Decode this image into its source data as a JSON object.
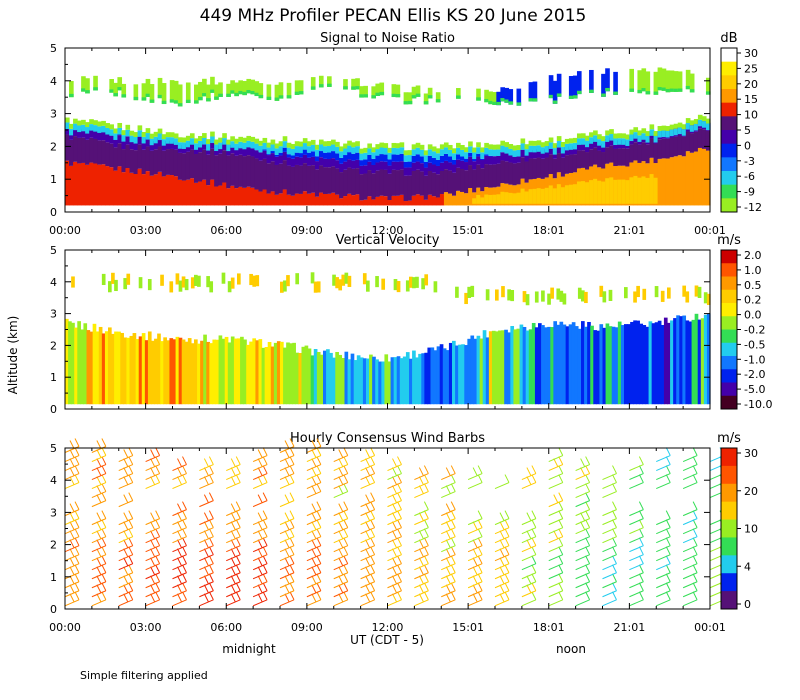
{
  "figure_title": "449 MHz Profiler PECAN Ellis KS 20 June 2015",
  "y_axis_label": "Altitude (km)",
  "x_axis_label": "UT (CDT - 5)",
  "day_labels": [
    "midnight",
    "noon"
  ],
  "footnote": "Simple filtering applied",
  "colors": {
    "white": "#ffffff",
    "lime": "#99ee22",
    "green": "#33dd55",
    "cyan": "#22ccee",
    "blue_light": "#1177ff",
    "blue": "#0022ee",
    "indigo": "#4400aa",
    "purple": "#551177",
    "red": "#ee2200",
    "orange_red": "#ff5500",
    "orange": "#ff9900",
    "yellow_orange": "#ffcc00",
    "yellow": "#ffee00",
    "dark_red": "#cc0000",
    "maroon": "#440022"
  },
  "chart_data": [
    {
      "type": "heatmap",
      "title": "Signal to Noise Ratio",
      "colorbar_unit": "dB",
      "colorbar_ticks": [
        "30",
        "25",
        "20",
        "15",
        "10",
        "5",
        "0",
        "-3",
        "-6",
        "-9",
        "-12"
      ],
      "colorbar_colors": [
        "#ffffff",
        "#ffee00",
        "#ffcc00",
        "#ff9900",
        "#ee2200",
        "#551177",
        "#4400aa",
        "#0022ee",
        "#1177ff",
        "#22ccee",
        "#33dd55",
        "#99ee22"
      ],
      "x_tick_labels": [
        "00:00",
        "03:00",
        "06:00",
        "09:00",
        "12:00",
        "15:01",
        "18:01",
        "21:01",
        "00:01"
      ],
      "x_range_hours": [
        0,
        24
      ],
      "y_tick_labels": [
        "0",
        "1",
        "2",
        "3",
        "4",
        "5"
      ],
      "ylim": [
        0,
        5
      ],
      "y_units": "km",
      "profiles": {
        "hours": [
          0,
          2,
          4,
          6,
          8,
          10,
          12,
          14,
          16,
          18,
          20,
          22,
          24
        ],
        "top_of_signal_km": [
          2.8,
          2.6,
          2.4,
          2.3,
          2.2,
          2.1,
          2.0,
          2.0,
          2.1,
          2.2,
          2.4,
          2.6,
          3.0
        ],
        "purple_layer_top_km": [
          2.3,
          2.0,
          1.9,
          1.8,
          1.5,
          1.3,
          1.2,
          1.2,
          1.5,
          1.7,
          1.9,
          2.2,
          2.6
        ],
        "red_layer_top_km": [
          1.5,
          1.3,
          1.1,
          0.8,
          0.6,
          0.5,
          0.4,
          0.5,
          0.8,
          1.1,
          1.4,
          1.6,
          2.0
        ],
        "upper_layer_bottom_km": [
          3.6,
          3.6,
          3.3,
          3.6,
          3.5,
          3.8,
          3.4,
          3.4,
          3.3,
          3.4,
          3.6,
          3.7,
          3.7
        ],
        "upper_layer_top_km": [
          4.1,
          4.0,
          4.0,
          4.0,
          4.0,
          4.1,
          3.8,
          3.7,
          3.7,
          4.1,
          4.3,
          4.4,
          4.2
        ]
      }
    },
    {
      "type": "heatmap",
      "title": "Vertical Velocity",
      "colorbar_unit": "m/s",
      "colorbar_ticks": [
        "2.0",
        "1.0",
        "0.5",
        "0.2",
        "0.0",
        "-0.2",
        "-0.5",
        "-1.0",
        "-2.0",
        "-5.0",
        "-10.0"
      ],
      "colorbar_colors": [
        "#cc0000",
        "#ff5500",
        "#ff9900",
        "#ffcc00",
        "#ffee00",
        "#99ee22",
        "#33dd55",
        "#22ccee",
        "#1177ff",
        "#0022ee",
        "#4400aa",
        "#440022"
      ],
      "x_tick_labels": [
        "",
        "",
        "",
        "",
        "",
        "",
        "",
        "",
        ""
      ],
      "x_range_hours": [
        0,
        24
      ],
      "y_tick_labels": [
        "0",
        "1",
        "2",
        "3",
        "4",
        "5"
      ],
      "ylim": [
        0,
        5
      ],
      "y_units": "km",
      "profiles": {
        "hours": [
          0,
          2,
          4,
          6,
          8,
          10,
          12,
          14,
          16,
          18,
          20,
          22,
          24
        ],
        "top_of_data_km": [
          2.7,
          2.4,
          2.2,
          2.2,
          2.0,
          1.7,
          1.6,
          1.9,
          2.5,
          2.7,
          2.6,
          2.7,
          3.0
        ],
        "dominant_velocity_ms": [
          0.1,
          0.2,
          0.2,
          0.1,
          0.0,
          -0.5,
          -0.5,
          -0.8,
          -0.2,
          -1.0,
          -1.0,
          -1.5,
          -0.5
        ]
      }
    },
    {
      "type": "scatter",
      "title": "Hourly Consensus Wind Barbs",
      "colorbar_unit": "m/s",
      "colorbar_ticks": [
        "30",
        "20",
        "10",
        "4",
        "0"
      ],
      "colorbar_colors": [
        "#ee2200",
        "#ff5500",
        "#ff9900",
        "#ffcc00",
        "#99ee22",
        "#33dd55",
        "#22ccee",
        "#0022ee",
        "#551177"
      ],
      "x_tick_labels": [
        "00:00",
        "03:00",
        "06:00",
        "09:00",
        "12:00",
        "15:01",
        "18:01",
        "21:01",
        "00:01"
      ],
      "x_range_hours": [
        0,
        24
      ],
      "y_tick_labels": [
        "0",
        "1",
        "2",
        "3",
        "4",
        "5"
      ],
      "ylim": [
        0,
        5
      ],
      "y_units": "km",
      "hourly_wind_speed_ms": {
        "hours": [
          0,
          2,
          4,
          6,
          8,
          10,
          12,
          14,
          16,
          18,
          20,
          22,
          24
        ],
        "low_level_speed": [
          20,
          22,
          25,
          28,
          20,
          18,
          15,
          14,
          12,
          8,
          5,
          5,
          8
        ],
        "mid_level_speed": [
          15,
          16,
          17,
          17,
          15,
          14,
          13,
          12,
          11,
          10,
          8,
          6,
          6
        ],
        "top_of_barbs_km": [
          5.0,
          4.8,
          4.5,
          4.5,
          5.0,
          4.8,
          4.4,
          4.2,
          4.0,
          4.6,
          4.2,
          4.8,
          4.8
        ]
      }
    }
  ]
}
